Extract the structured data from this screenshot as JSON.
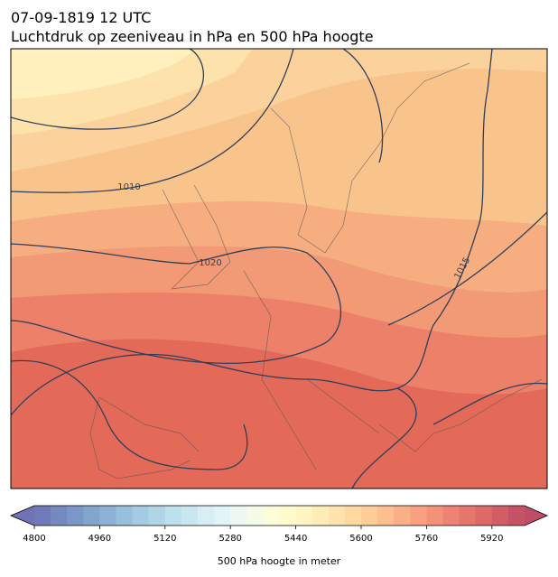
{
  "header": {
    "title": "07-09-1819 12 UTC",
    "subtitle": "Luchtdruk op zeeniveau in hPa en 500 hPa hoogte"
  },
  "map": {
    "isobar_labels": [
      1010,
      1020,
      1015
    ]
  },
  "colorbar": {
    "label": "500 hPa hoogte in meter",
    "lim": [
      4800,
      6000
    ],
    "step": 40,
    "ticks": [
      4800,
      4960,
      5120,
      5280,
      5440,
      5600,
      5760,
      5920
    ],
    "colors": [
      "#313695",
      "#4575b4",
      "#74add1",
      "#abd9e9",
      "#e0f3f8",
      "#ffffbf",
      "#fee090",
      "#fdae61",
      "#f46d43",
      "#d73027",
      "#a50026"
    ],
    "alpha": 0.7
  }
}
